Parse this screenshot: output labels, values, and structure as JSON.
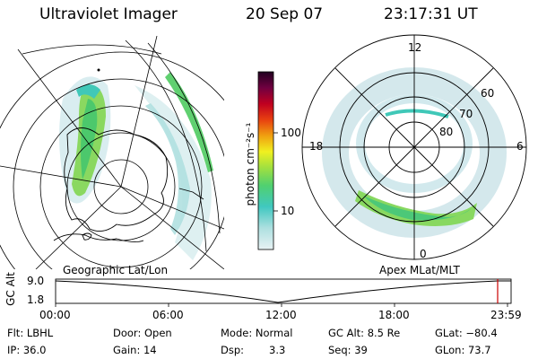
{
  "header": {
    "instrument": "Ultraviolet Imager",
    "date": "20 Sep 07",
    "time": "23:17:31 UT"
  },
  "geo_panel": {
    "label": "Geographic Lat/Lon"
  },
  "apex_panel": {
    "label": "Apex MLat/MLT",
    "mlt_labels": [
      "12",
      "18",
      "6",
      "0"
    ],
    "lat_labels": [
      "60",
      "70",
      "80"
    ]
  },
  "colorbar": {
    "label": "photon cm⁻²s⁻¹",
    "ticks": [
      "100",
      "10"
    ]
  },
  "altitude_strip": {
    "axis_label": "GC Alt",
    "y_ticks": [
      "9.0",
      "1.8"
    ],
    "x_ticks": [
      "00:00",
      "06:00",
      "12:00",
      "18:00",
      "23:59"
    ],
    "marker_color": "#cc0000"
  },
  "status": {
    "flt": "Flt: LBHL",
    "door": "Door: Open",
    "mode": "Mode: Normal",
    "gcalt": "GC Alt: 8.5 Re",
    "glat": "GLat: −80.4",
    "ip": "IP: 36.0",
    "gain": "Gain: 14",
    "dsp_label": "Dsp:",
    "dsp_value": "3.3",
    "seq": "Seq: 39",
    "glon": "GLon: 73.7"
  }
}
